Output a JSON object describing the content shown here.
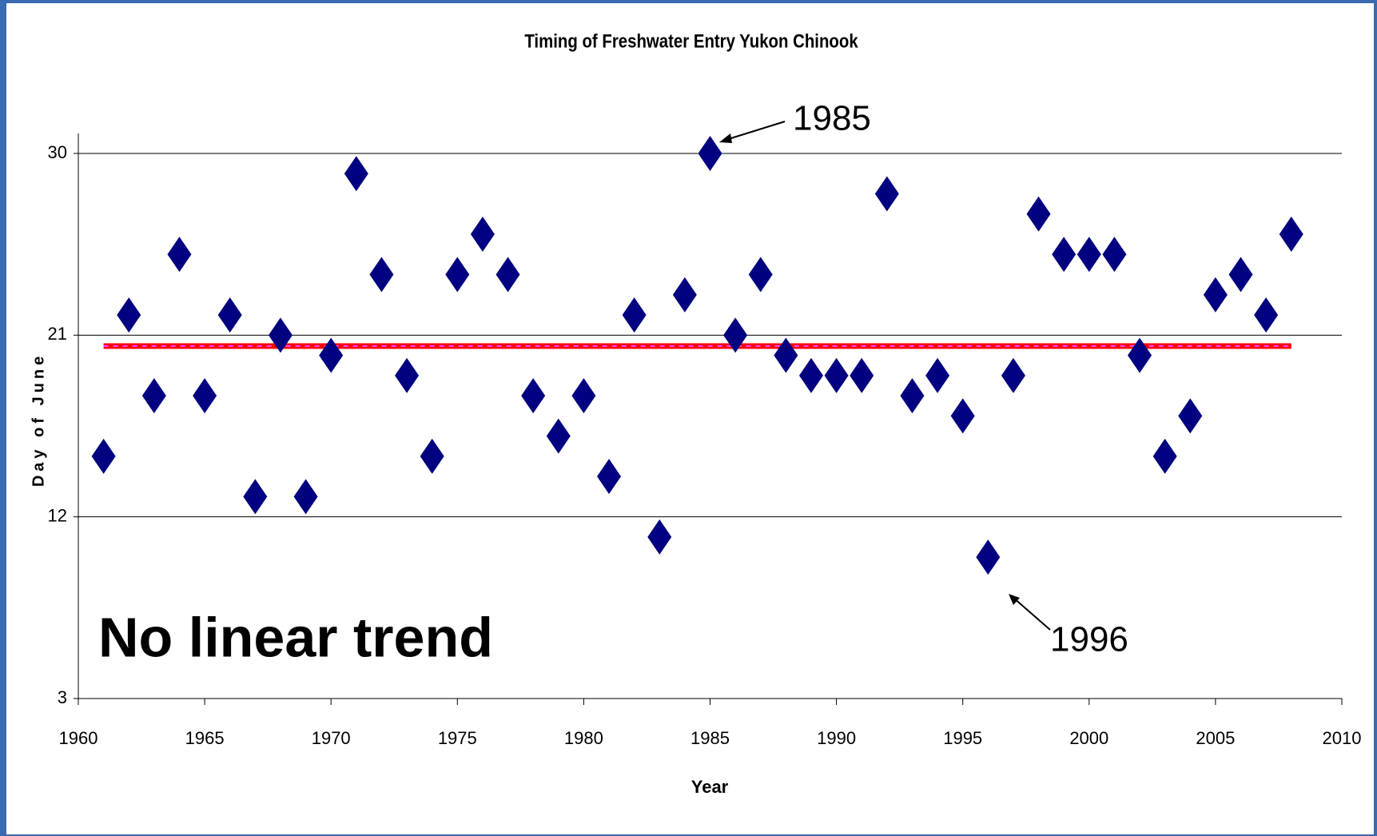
{
  "chart_data": {
    "type": "scatter",
    "title": "Timing of Freshwater Entry Yukon Chinook",
    "x_label": "Year",
    "y_label": "Day of June",
    "x": [
      1961,
      1962,
      1963,
      1964,
      1965,
      1966,
      1967,
      1968,
      1969,
      1970,
      1971,
      1972,
      1973,
      1974,
      1975,
      1976,
      1977,
      1978,
      1979,
      1980,
      1981,
      1982,
      1983,
      1984,
      1985,
      1986,
      1987,
      1988,
      1989,
      1990,
      1991,
      1992,
      1993,
      1994,
      1995,
      1996,
      1997,
      1998,
      1999,
      2000,
      2001,
      2002,
      2003,
      2004,
      2005,
      2006,
      2007,
      2008
    ],
    "series": [
      {
        "color": "#000080",
        "marker": "diamond",
        "values": [
          15,
          22,
          18,
          25,
          18,
          22,
          13,
          21,
          13,
          20,
          29,
          24,
          19,
          15,
          24,
          26,
          24,
          18,
          16,
          18,
          14,
          22,
          11,
          23,
          30,
          21,
          24,
          20,
          19,
          19,
          19,
          28,
          18,
          19,
          17,
          10,
          19,
          27,
          25,
          25,
          25,
          20,
          15,
          17,
          23,
          24,
          22,
          26
        ]
      }
    ],
    "trend_lines": [
      {
        "x": [
          1961,
          2008
        ],
        "values": [
          20.46,
          20.46
        ],
        "color": "#ff0000",
        "dash_color": "#ff44ff"
      }
    ],
    "xlim": [
      1960,
      2010
    ],
    "xticks": [
      1960,
      1965,
      1970,
      1975,
      1980,
      1985,
      1990,
      1995,
      2000,
      2005,
      2010
    ],
    "ylim": [
      3,
      30
    ],
    "yticks": [
      3,
      12,
      21,
      30
    ],
    "grid": true,
    "annotations": [
      "1985",
      "1996",
      "No linear trend"
    ]
  }
}
